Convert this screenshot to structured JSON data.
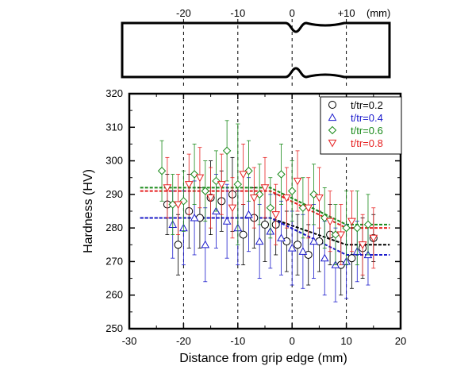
{
  "chart_data": {
    "type": "scatter",
    "xlabel": "Distance from grip edge (mm)",
    "ylabel": "Hardness (HV)",
    "xlim": [
      -30,
      20
    ],
    "ylim": [
      250,
      320
    ],
    "x_ticks": [
      "-30",
      "-20",
      "-10",
      "0",
      "10",
      "20"
    ],
    "y_ticks": [
      "250",
      "260",
      "270",
      "280",
      "290",
      "300",
      "310",
      "320"
    ],
    "grid": "dashed vertical lines at x = -20, -10, 0, 10",
    "legend_position": "top-right",
    "schematic": {
      "tick_labels": [
        "-20",
        "-10",
        "0",
        "+10"
      ],
      "tick_positions": [
        -20,
        -10,
        0,
        10
      ],
      "unit_label": "(mm)"
    },
    "series": [
      {
        "name": "t/tr=0.2",
        "marker": "circle",
        "color": "#000000",
        "x": [
          -23,
          -21,
          -19,
          -17,
          -15,
          -13,
          -11,
          -9,
          -7,
          -5,
          -3,
          -1,
          1,
          3,
          5,
          7,
          9,
          11,
          13,
          15
        ],
        "y": [
          287,
          275,
          285,
          283,
          289,
          288,
          290,
          278,
          283,
          281,
          281,
          276,
          275,
          272,
          276,
          278,
          269,
          271,
          274,
          277
        ],
        "err": [
          9,
          9,
          11,
          9,
          11,
          9,
          11,
          9,
          9,
          11,
          9,
          9,
          9,
          9,
          9,
          9,
          9,
          9,
          9,
          7
        ]
      },
      {
        "name": "t/tr=0.4",
        "marker": "triangle-up",
        "color": "#1a1acc",
        "x": [
          -22,
          -20,
          -18,
          -16,
          -14,
          -12,
          -10,
          -8,
          -6,
          -4,
          -2,
          0,
          2,
          4,
          6,
          8,
          10,
          12,
          14
        ],
        "y": [
          281,
          280,
          283,
          275,
          285,
          282,
          280,
          284,
          276,
          279,
          277,
          274,
          273,
          276,
          271,
          269,
          270,
          273,
          272
        ],
        "err": [
          10,
          11,
          11,
          11,
          11,
          11,
          11,
          11,
          11,
          11,
          11,
          11,
          11,
          11,
          11,
          11,
          11,
          9,
          9
        ]
      },
      {
        "name": "t/tr=0.6",
        "marker": "diamond",
        "color": "#1a8a1a",
        "x": [
          -24,
          -22,
          -20,
          -18,
          -16,
          -14,
          -12,
          -10,
          -8,
          -6,
          -4,
          -2,
          0,
          2,
          4,
          6,
          8,
          10,
          12,
          14
        ],
        "y": [
          297,
          287,
          288,
          296,
          291,
          294,
          303,
          293,
          297,
          290,
          286,
          296,
          291,
          286,
          290,
          283,
          278,
          280,
          280,
          281
        ],
        "err": [
          9,
          9,
          9,
          9,
          9,
          9,
          9,
          18,
          9,
          9,
          9,
          9,
          9,
          9,
          9,
          9,
          9,
          11,
          11,
          9
        ]
      },
      {
        "name": "t/tr=0.8",
        "marker": "triangle-down",
        "color": "#e62020",
        "x": [
          -23,
          -21,
          -19,
          -17,
          -15,
          -13,
          -11,
          -9,
          -7,
          -5,
          -3,
          -1,
          1,
          3,
          5,
          7,
          9,
          11,
          13,
          15
        ],
        "y": [
          292,
          287,
          293,
          295,
          289,
          293,
          286,
          296,
          289,
          292,
          284,
          289,
          294,
          286,
          289,
          282,
          278,
          282,
          275,
          277
        ],
        "err": [
          9,
          9,
          9,
          9,
          9,
          9,
          9,
          9,
          9,
          9,
          9,
          9,
          9,
          9,
          9,
          9,
          9,
          9,
          9,
          9
        ]
      }
    ],
    "fit_lines": [
      {
        "series": "t/tr=0.2",
        "x": [
          -28,
          -4,
          10,
          18
        ],
        "y": [
          283,
          283,
          275,
          275
        ]
      },
      {
        "series": "t/tr=0.4",
        "x": [
          -28,
          -4,
          10,
          18
        ],
        "y": [
          283,
          283,
          272,
          272
        ]
      },
      {
        "series": "t/tr=0.6",
        "x": [
          -28,
          -4,
          10,
          18
        ],
        "y": [
          292,
          292,
          281,
          281
        ]
      },
      {
        "series": "t/tr=0.8",
        "x": [
          -28,
          -4,
          10,
          18
        ],
        "y": [
          291,
          291,
          280,
          280
        ]
      }
    ]
  }
}
